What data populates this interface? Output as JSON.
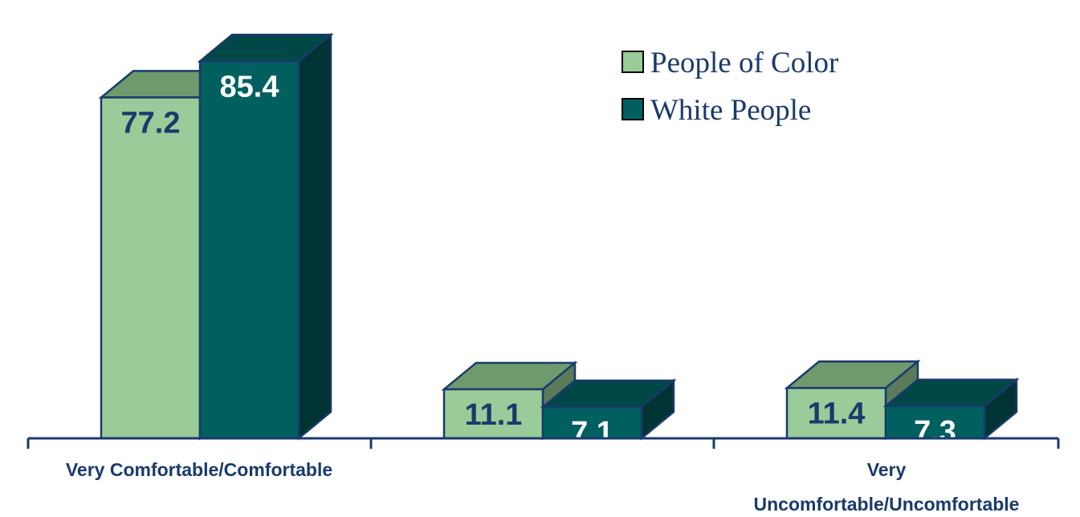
{
  "chart_data": {
    "type": "bar",
    "categories": [
      "Very Comfortable/Comfortable",
      "",
      "Very Uncomfortable/Uncomfortable"
    ],
    "category_lines": [
      [
        "Very Comfortable/Comfortable"
      ],
      [],
      [
        "Very",
        "Uncomfortable/Uncomfortable"
      ]
    ],
    "series": [
      {
        "name": "People of Color",
        "values": [
          77.2,
          11.1,
          11.4
        ],
        "labels": [
          "77.2",
          "11.1",
          "11.4"
        ],
        "color": "#99cc99",
        "top_color": "#6e9a6e",
        "side_color": "#5a7a5a",
        "label_color": "#1a3a6b"
      },
      {
        "name": "White People",
        "values": [
          85.4,
          7.1,
          7.3
        ],
        "labels": [
          "85.4",
          "7.1",
          "7.3"
        ],
        "color": "#006060",
        "top_color": "#004848",
        "side_color": "#003333",
        "label_color": "#ffffff"
      }
    ],
    "ylim": [
      0,
      100
    ],
    "legend_position": "top-right",
    "grid": false,
    "outline_color": "#1a3a6b"
  }
}
